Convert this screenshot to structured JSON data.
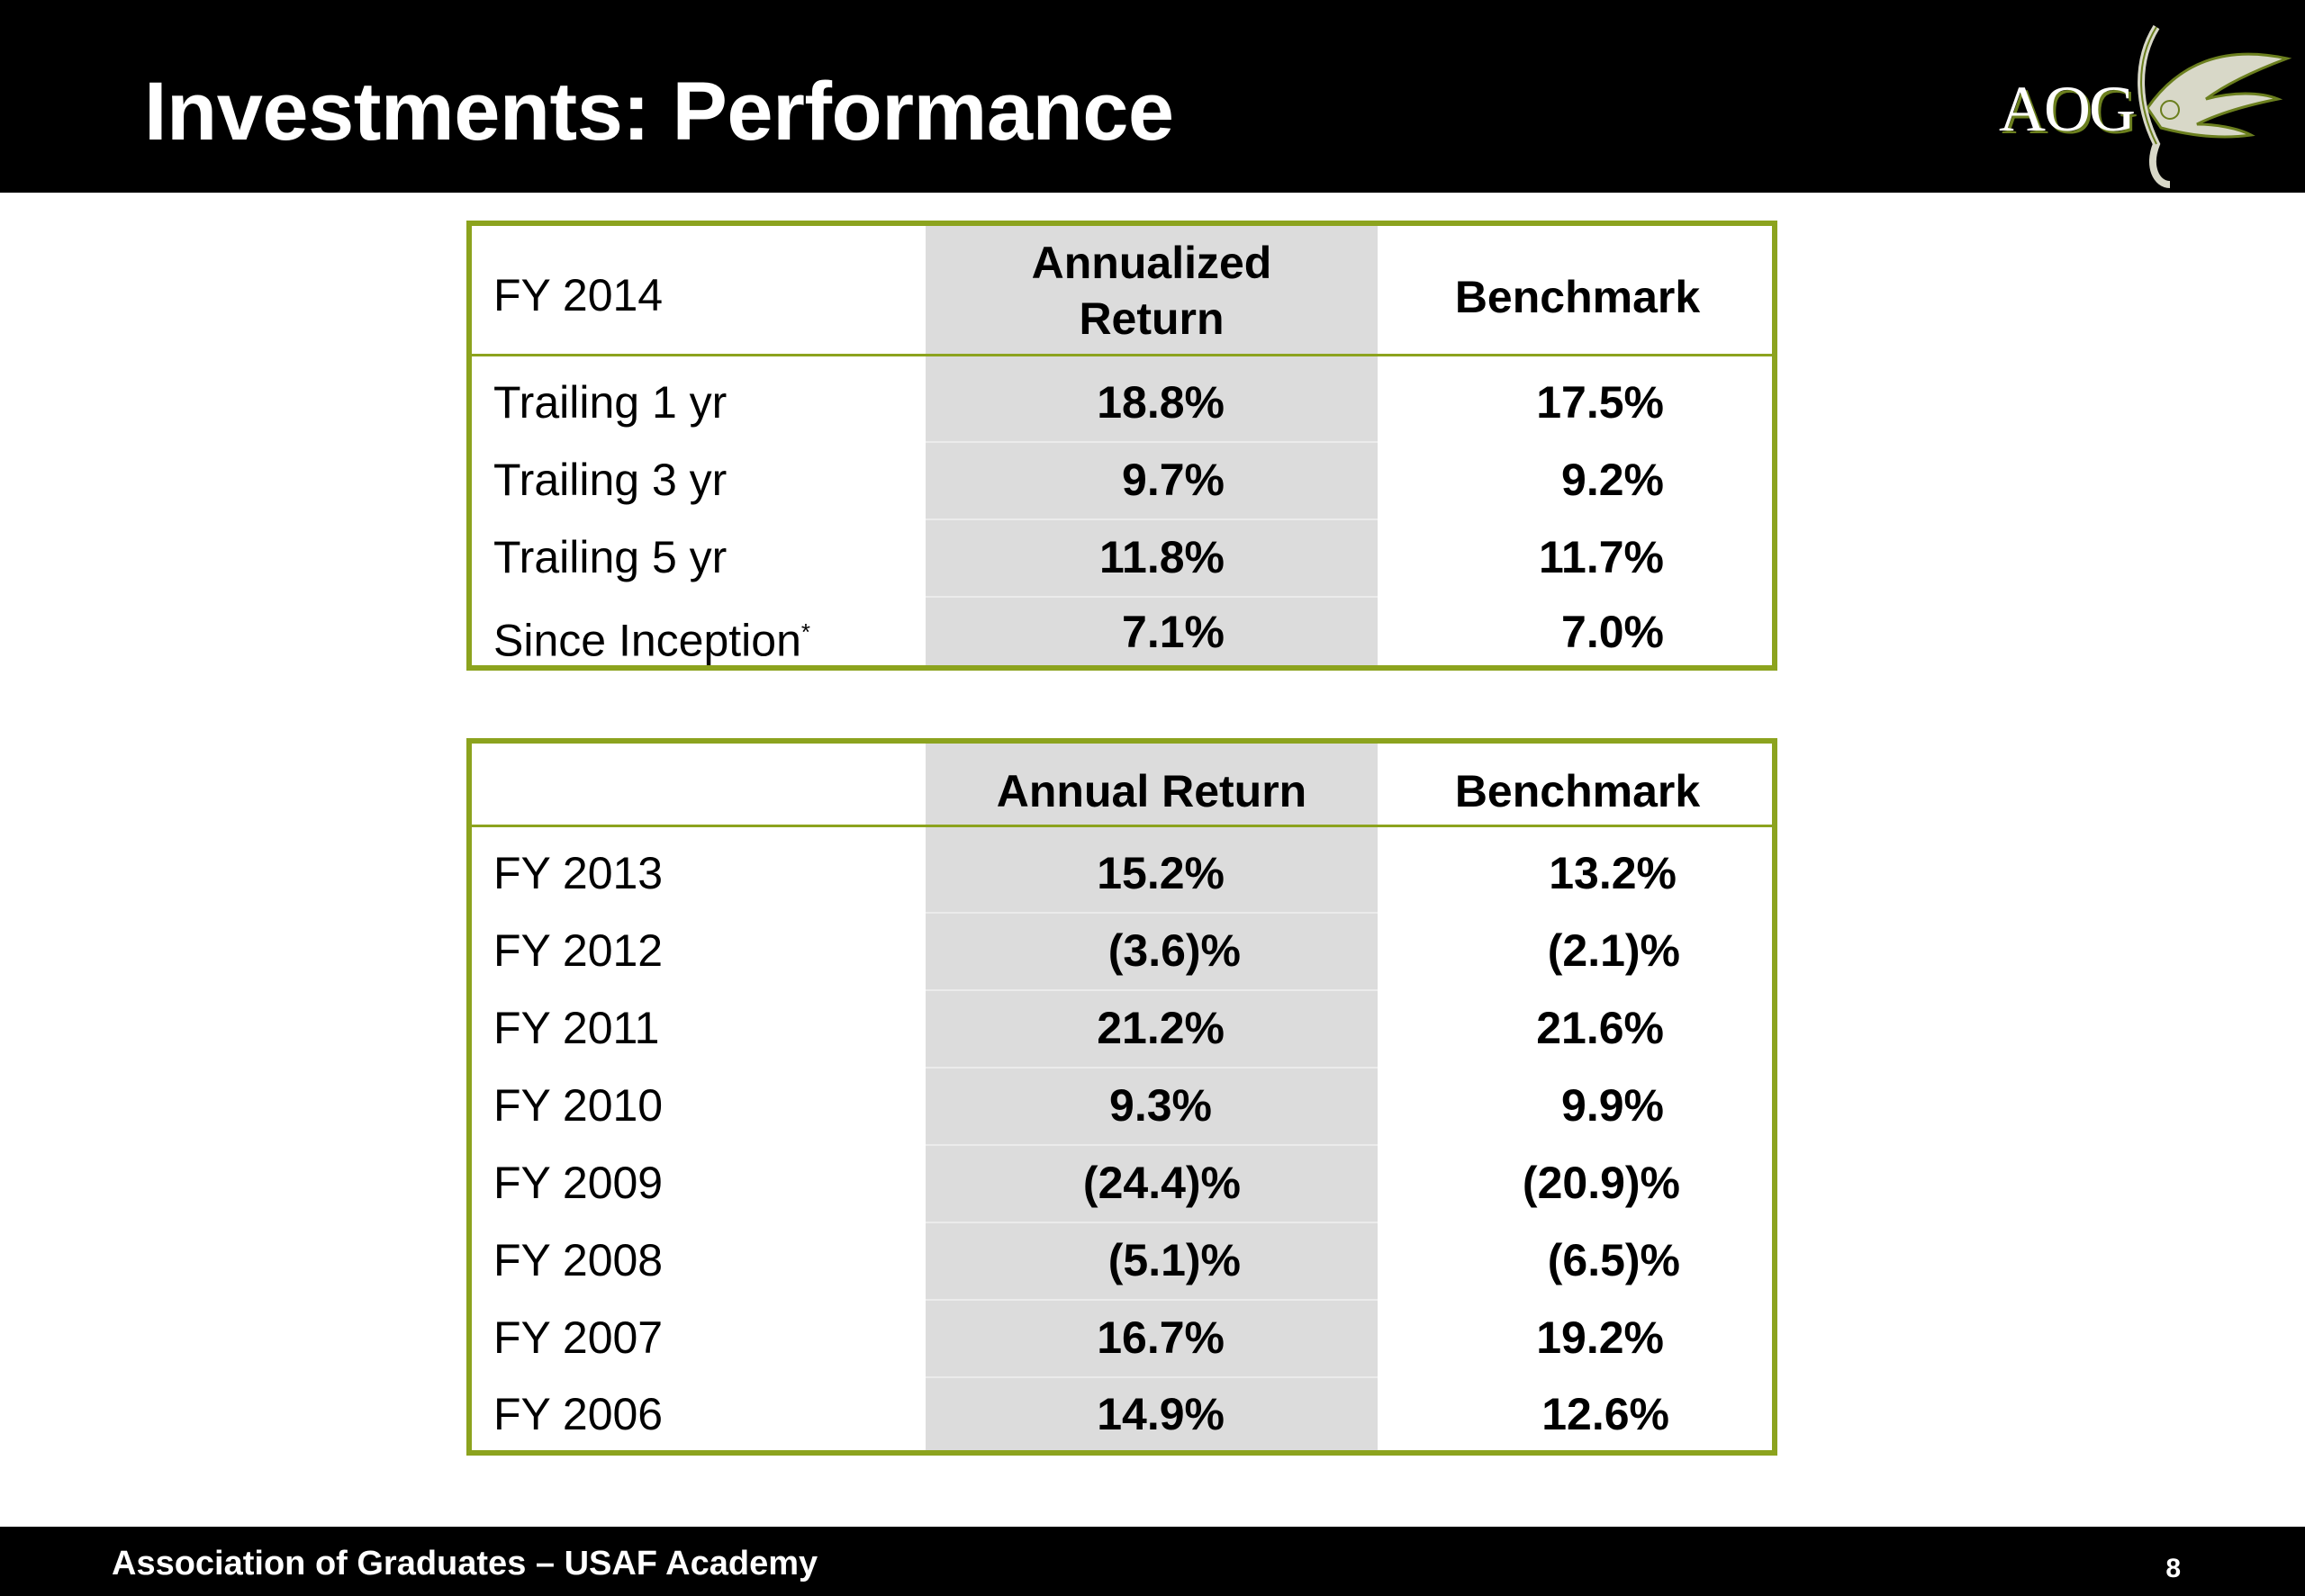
{
  "slide": {
    "title": "Investments: Performance",
    "logo_text": "AOG",
    "footer_text": "Association of Graduates – USAF Academy",
    "page_number": "8"
  },
  "colors": {
    "accent": "#8ca31e",
    "shade": "#dcdcdc",
    "bar": "#000000"
  },
  "table1": {
    "row_header": "FY 2014",
    "col1": "Annualized Return",
    "col2": "Benchmark",
    "rows": [
      {
        "label": "Trailing 1 yr",
        "return": "18.8%",
        "benchmark": "17.5%"
      },
      {
        "label": "Trailing 3 yr",
        "return": "9.7%",
        "benchmark": "9.2%"
      },
      {
        "label": "Trailing 5 yr",
        "return": "11.8%",
        "benchmark": "11.7%"
      },
      {
        "label": "Since Inception",
        "footnote": "*",
        "return": "7.1%",
        "benchmark": "7.0%"
      }
    ]
  },
  "table2": {
    "row_header": "",
    "col1": "Annual Return",
    "col2": "Benchmark",
    "rows": [
      {
        "label": "FY 2013",
        "return": "15.2%",
        "benchmark": "13.2%"
      },
      {
        "label": "FY 2012",
        "return": "(3.6)%",
        "benchmark": "(2.1)%"
      },
      {
        "label": "FY 2011",
        "return": "21.2%",
        "benchmark": "21.6%"
      },
      {
        "label": "FY 2010",
        "return": "9.3%",
        "benchmark": "9.9%"
      },
      {
        "label": "FY 2009",
        "return": "(24.4)%",
        "benchmark": "(20.9)%"
      },
      {
        "label": "FY 2008",
        "return": "(5.1)%",
        "benchmark": "(6.5)%"
      },
      {
        "label": "FY 2007",
        "return": "16.7%",
        "benchmark": "19.2%"
      },
      {
        "label": "FY 2006",
        "return": "14.9%",
        "benchmark": "12.6%"
      }
    ]
  }
}
